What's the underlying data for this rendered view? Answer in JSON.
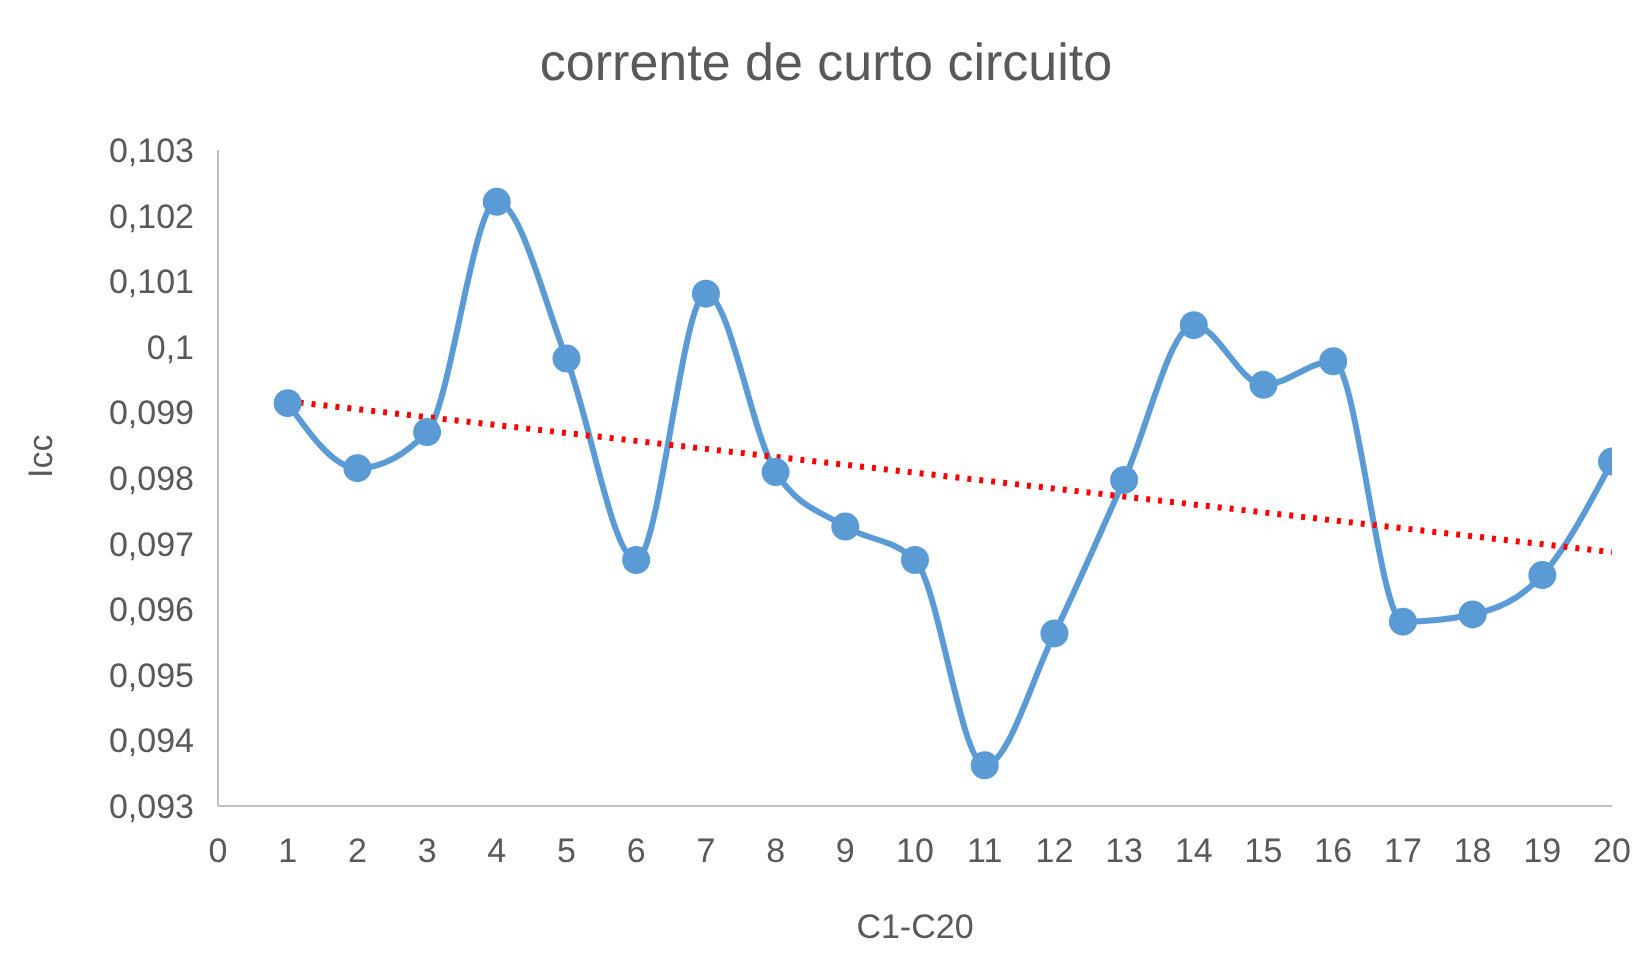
{
  "chart_data": {
    "type": "line",
    "title": "corrente de curto circuito",
    "xlabel": "C1-C20",
    "ylabel": "Icc",
    "x": [
      1,
      2,
      3,
      4,
      5,
      6,
      7,
      8,
      9,
      10,
      11,
      12,
      13,
      14,
      15,
      16,
      17,
      18,
      19,
      20
    ],
    "series": [
      {
        "color": "#5b9bd5",
        "marker": "circle",
        "line_style": "solid",
        "values": [
          0.09914,
          0.09815,
          0.0987,
          0.10221,
          0.09982,
          0.09675,
          0.10081,
          0.09809,
          0.09726,
          0.09675,
          0.09362,
          0.09563,
          0.09797,
          0.10033,
          0.09942,
          0.09978,
          0.09581,
          0.09592,
          0.09652,
          0.09825
        ]
      },
      {
        "type": "line",
        "color": "#ff0000",
        "marker": "none",
        "line_style": "dotted",
        "x": [
          1,
          20
        ],
        "values": [
          0.09917,
          0.09687
        ]
      }
    ],
    "xlim": [
      0,
      20
    ],
    "xticks": [
      0,
      1,
      2,
      3,
      4,
      5,
      6,
      7,
      8,
      9,
      10,
      11,
      12,
      13,
      14,
      15,
      16,
      17,
      18,
      19,
      20
    ],
    "ylim": [
      0.093,
      0.103
    ],
    "yticks": [
      {
        "value": 0.093,
        "label": "0,093"
      },
      {
        "value": 0.094,
        "label": "0,094"
      },
      {
        "value": 0.095,
        "label": "0,095"
      },
      {
        "value": 0.096,
        "label": "0,096"
      },
      {
        "value": 0.097,
        "label": "0,097"
      },
      {
        "value": 0.098,
        "label": "0,098"
      },
      {
        "value": 0.099,
        "label": "0,099"
      },
      {
        "value": 0.1,
        "label": "0,1"
      },
      {
        "value": 0.101,
        "label": "0,101"
      },
      {
        "value": 0.102,
        "label": "0,102"
      },
      {
        "value": 0.103,
        "label": "0,103"
      }
    ],
    "grid": false,
    "legend": false
  }
}
